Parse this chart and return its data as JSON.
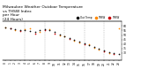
{
  "title": "Milwaukee Weather Outdoor Temperature\nvs THSW Index\nper Hour\n(24 Hours)",
  "title_fontsize": 3.2,
  "hours": [
    0,
    1,
    2,
    3,
    4,
    5,
    6,
    7,
    8,
    9,
    10,
    11,
    12,
    13,
    14,
    15,
    16,
    17,
    18,
    19,
    20,
    21,
    22,
    23
  ],
  "temp": [
    58,
    57,
    56,
    55,
    55,
    54,
    53,
    55,
    56,
    55,
    53,
    51,
    49,
    47,
    45,
    43,
    41,
    39,
    37,
    35,
    33,
    31,
    30,
    29
  ],
  "thsw_orange": [
    58,
    null,
    55,
    null,
    56,
    57,
    null,
    53,
    null,
    56,
    null,
    50,
    49,
    null,
    44,
    42,
    null,
    40,
    36,
    34,
    null,
    30,
    null,
    57
  ],
  "thsw_red": [
    null,
    57,
    null,
    54,
    null,
    null,
    52,
    null,
    55,
    null,
    52,
    null,
    null,
    46,
    null,
    null,
    40,
    null,
    null,
    null,
    32,
    null,
    29,
    null
  ],
  "temp_color": "#111111",
  "thsw_orange_color": "#ff8800",
  "thsw_red_color": "#cc0000",
  "background": "#ffffff",
  "grid_color": "#999999",
  "grid_positions": [
    4,
    8,
    12,
    16,
    20
  ],
  "ylim": [
    22,
    65
  ],
  "xlim": [
    -0.5,
    23.5
  ],
  "yticks": [
    30,
    35,
    40,
    45,
    50,
    55,
    60
  ],
  "legend_items": [
    {
      "label": "Out Temp",
      "color": "#111111"
    },
    {
      "label": "THSW",
      "color": "#ff8800"
    },
    {
      "label": "THSW",
      "color": "#cc0000"
    }
  ],
  "dot_size": 1.5,
  "tick_fontsize": 2.2
}
